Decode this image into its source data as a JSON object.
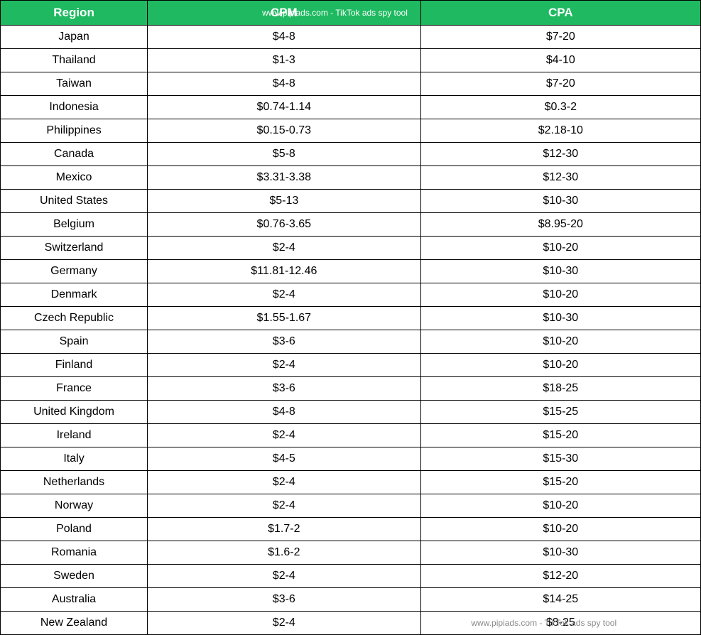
{
  "table": {
    "header_bg_color": "#1eb960",
    "header_text_color": "#ffffff",
    "border_color": "#000000",
    "cell_text_color": "#000000",
    "watermark_text": "www.pipiads.com - TikTok ads spy tool",
    "columns": [
      {
        "key": "region",
        "label": "Region"
      },
      {
        "key": "cpm",
        "label": "CPM"
      },
      {
        "key": "cpa",
        "label": "CPA"
      }
    ],
    "rows": [
      {
        "region": "Japan",
        "cpm": "$4-8",
        "cpa": "$7-20"
      },
      {
        "region": "Thailand",
        "cpm": "$1-3",
        "cpa": "$4-10"
      },
      {
        "region": "Taiwan",
        "cpm": "$4-8",
        "cpa": "$7-20"
      },
      {
        "region": "Indonesia",
        "cpm": "$0.74-1.14",
        "cpa": "$0.3-2"
      },
      {
        "region": "Philippines",
        "cpm": "$0.15-0.73",
        "cpa": "$2.18-10"
      },
      {
        "region": "Canada",
        "cpm": "$5-8",
        "cpa": "$12-30"
      },
      {
        "region": "Mexico",
        "cpm": "$3.31-3.38",
        "cpa": "$12-30"
      },
      {
        "region": "United States",
        "cpm": "$5-13",
        "cpa": "$10-30"
      },
      {
        "region": "Belgium",
        "cpm": "$0.76-3.65",
        "cpa": "$8.95-20"
      },
      {
        "region": "Switzerland",
        "cpm": "$2-4",
        "cpa": "$10-20"
      },
      {
        "region": "Germany",
        "cpm": "$11.81-12.46",
        "cpa": "$10-30"
      },
      {
        "region": "Denmark",
        "cpm": "$2-4",
        "cpa": "$10-20"
      },
      {
        "region": "Czech Republic",
        "cpm": "$1.55-1.67",
        "cpa": "$10-30"
      },
      {
        "region": "Spain",
        "cpm": "$3-6",
        "cpa": "$10-20"
      },
      {
        "region": "Finland",
        "cpm": "$2-4",
        "cpa": "$10-20"
      },
      {
        "region": "France",
        "cpm": "$3-6",
        "cpa": "$18-25"
      },
      {
        "region": "United Kingdom",
        "cpm": "$4-8",
        "cpa": "$15-25"
      },
      {
        "region": "Ireland",
        "cpm": "$2-4",
        "cpa": "$15-20"
      },
      {
        "region": "Italy",
        "cpm": "$4-5",
        "cpa": "$15-30"
      },
      {
        "region": "Netherlands",
        "cpm": "$2-4",
        "cpa": "$15-20"
      },
      {
        "region": "Norway",
        "cpm": "$2-4",
        "cpa": "$10-20"
      },
      {
        "region": "Poland",
        "cpm": "$1.7-2",
        "cpa": "$10-20"
      },
      {
        "region": "Romania",
        "cpm": "$1.6-2",
        "cpa": "$10-30"
      },
      {
        "region": "Sweden",
        "cpm": "$2-4",
        "cpa": "$12-20"
      },
      {
        "region": "Australia",
        "cpm": "$3-6",
        "cpa": "$14-25"
      },
      {
        "region": "New Zealand",
        "cpm": "$2-4",
        "cpa": "$8-25"
      }
    ]
  }
}
